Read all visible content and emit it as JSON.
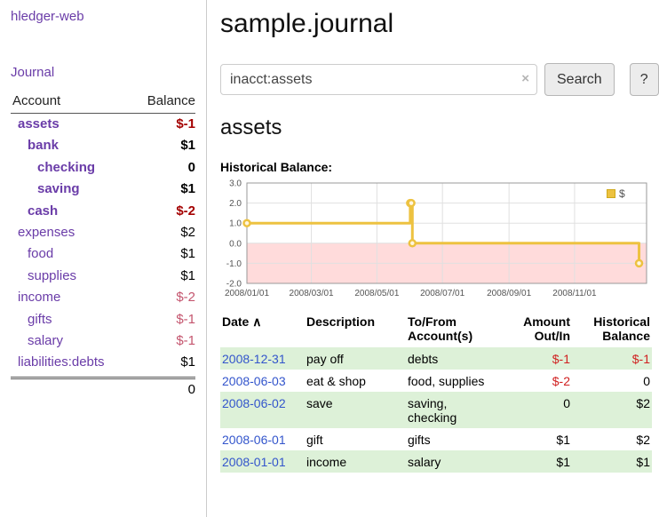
{
  "app": {
    "title": "hledger-web"
  },
  "sidebar": {
    "journal_link": "Journal",
    "table": {
      "account_header": "Account",
      "balance_header": "Balance",
      "rows": [
        {
          "name": "assets",
          "balance": "$-1"
        },
        {
          "name": "bank",
          "balance": "$1"
        },
        {
          "name": "checking",
          "balance": "0"
        },
        {
          "name": "saving",
          "balance": "$1"
        },
        {
          "name": "cash",
          "balance": "$-2"
        },
        {
          "name": "expenses",
          "balance": "$2"
        },
        {
          "name": "food",
          "balance": "$1"
        },
        {
          "name": "supplies",
          "balance": "$1"
        },
        {
          "name": "income",
          "balance": "$-2"
        },
        {
          "name": "gifts",
          "balance": "$-1"
        },
        {
          "name": "salary",
          "balance": "$-1"
        },
        {
          "name": "liabilities:debts",
          "balance": "$1"
        }
      ],
      "total": "0"
    }
  },
  "main": {
    "title": "sample.journal",
    "search": {
      "value": "inacct:assets",
      "clear_icon": "×",
      "button": "Search",
      "help_button": "?"
    },
    "account_heading": "assets",
    "chart_label": "Historical Balance:"
  },
  "chart_data": {
    "type": "line",
    "title": "Historical Balance of assets",
    "legend": [
      {
        "label": "$",
        "color": "#EDC240"
      }
    ],
    "ylim": [
      -2,
      3
    ],
    "y_ticks": [
      3,
      2,
      1,
      0,
      -1,
      -2
    ],
    "xlim": [
      "2008-01-01",
      "2009-01-07"
    ],
    "x_ticks": [
      "2008/01/01",
      "2008/03/01",
      "2008/05/01",
      "2008/07/01",
      "2008/09/01",
      "2008/11/01"
    ],
    "grid": true,
    "legend_position": "top-right",
    "negative_region_color": "#ffdbdb",
    "series": [
      {
        "name": "$",
        "color": "#EDC240",
        "step": true,
        "points": [
          {
            "date": "2008-01-01",
            "value": 1
          },
          {
            "date": "2008-06-01",
            "value": 2
          },
          {
            "date": "2008-06-02",
            "value": 2
          },
          {
            "date": "2008-06-03",
            "value": 0
          },
          {
            "date": "2008-12-31",
            "value": -1
          }
        ]
      }
    ]
  },
  "register": {
    "headers": {
      "date": "Date",
      "sort_indicator": "∧",
      "description": "Description",
      "account": "To/From Account(s)",
      "amount": "Amount Out/In",
      "balance": "Historical Balance"
    },
    "rows": [
      {
        "date": "2008-12-31",
        "description": "pay off",
        "accounts": "debts",
        "amount": "$-1",
        "balance": "$-1"
      },
      {
        "date": "2008-06-03",
        "description": "eat & shop",
        "accounts": "food, supplies",
        "amount": "$-2",
        "balance": "0"
      },
      {
        "date": "2008-06-02",
        "description": "save",
        "accounts": "saving, checking",
        "amount": "0",
        "balance": "$2"
      },
      {
        "date": "2008-06-01",
        "description": "gift",
        "accounts": "gifts",
        "amount": "$1",
        "balance": "$2"
      },
      {
        "date": "2008-01-01",
        "description": "income",
        "accounts": "salary",
        "amount": "$1",
        "balance": "$1"
      }
    ]
  },
  "colors": {
    "accent_purple": "#6a3ca8",
    "link_blue": "#3355cc",
    "negative_dark": "#a40000",
    "negative_soft": "#c4556e",
    "negative_red": "#d02020",
    "row_highlight_green": "#ddf1d8",
    "chart_series": "#EDC240"
  }
}
